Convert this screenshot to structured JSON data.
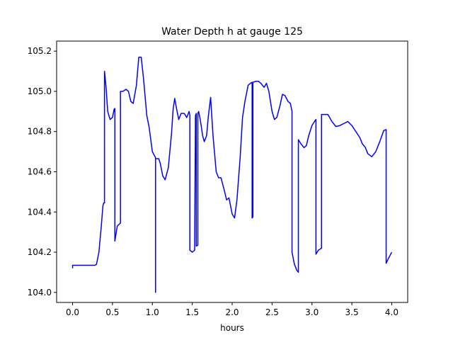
{
  "chart_data": {
    "type": "line",
    "title": "Water Depth h at gauge 125",
    "xlabel": "hours",
    "ylabel": "",
    "xlim": [
      -0.2,
      4.2
    ],
    "ylim": [
      103.95,
      105.25
    ],
    "xticks": [
      0.0,
      0.5,
      1.0,
      1.5,
      2.0,
      2.5,
      3.0,
      3.5,
      4.0
    ],
    "xtick_labels": [
      "0.0",
      "0.5",
      "1.0",
      "1.5",
      "2.0",
      "2.5",
      "3.0",
      "3.5",
      "4.0"
    ],
    "yticks": [
      104.0,
      104.2,
      104.4,
      104.6,
      104.8,
      105.0,
      105.2
    ],
    "ytick_labels": [
      "104.0",
      "104.2",
      "104.4",
      "104.6",
      "104.8",
      "105.0",
      "105.2"
    ],
    "grid": false,
    "legend": "none",
    "series": [
      {
        "color": "#0000ff",
        "x": [
          0.0,
          0.0,
          0.1,
          0.2,
          0.28,
          0.3,
          0.33,
          0.36,
          0.38,
          0.39,
          0.4,
          0.4,
          0.42,
          0.44,
          0.47,
          0.5,
          0.52,
          0.53,
          0.53,
          0.56,
          0.6,
          0.6,
          0.63,
          0.67,
          0.7,
          0.73,
          0.76,
          0.8,
          0.83,
          0.86,
          0.89,
          0.93,
          0.96,
          1.0,
          1.04,
          1.04,
          1.04,
          1.08,
          1.1,
          1.13,
          1.16,
          1.2,
          1.24,
          1.26,
          1.28,
          1.3,
          1.33,
          1.36,
          1.4,
          1.43,
          1.46,
          1.47,
          1.47,
          1.5,
          1.53,
          1.53,
          1.54,
          1.55,
          1.55,
          1.57,
          1.57,
          1.58,
          1.6,
          1.63,
          1.65,
          1.68,
          1.7,
          1.73,
          1.76,
          1.8,
          1.83,
          1.86,
          1.9,
          1.93,
          1.96,
          2.0,
          2.03,
          2.06,
          2.1,
          2.13,
          2.16,
          2.2,
          2.23,
          2.25,
          2.25,
          2.26,
          2.26,
          2.3,
          2.33,
          2.36,
          2.4,
          2.43,
          2.46,
          2.5,
          2.53,
          2.56,
          2.6,
          2.63,
          2.66,
          2.7,
          2.73,
          2.75,
          2.75,
          2.78,
          2.81,
          2.83,
          2.83,
          2.86,
          2.9,
          2.93,
          2.96,
          3.0,
          3.04,
          3.05,
          3.05,
          3.08,
          3.12,
          3.12,
          3.15,
          3.2,
          3.25,
          3.3,
          3.35,
          3.4,
          3.45,
          3.5,
          3.55,
          3.6,
          3.63,
          3.67,
          3.7,
          3.75,
          3.8,
          3.85,
          3.9,
          3.93,
          3.93,
          3.96,
          4.0
        ],
        "y": [
          104.12,
          104.135,
          104.135,
          104.135,
          104.135,
          104.14,
          104.2,
          104.33,
          104.43,
          104.445,
          104.445,
          105.1,
          105.02,
          104.9,
          104.86,
          104.87,
          104.91,
          104.915,
          104.255,
          104.33,
          104.345,
          105.0,
          105.0,
          105.01,
          105.0,
          104.95,
          104.94,
          105.03,
          105.17,
          105.17,
          105.06,
          104.88,
          104.82,
          104.7,
          104.67,
          104.0,
          104.665,
          104.665,
          104.64,
          104.58,
          104.56,
          104.62,
          104.79,
          104.91,
          104.965,
          104.92,
          104.86,
          104.89,
          104.89,
          104.87,
          104.9,
          104.88,
          104.21,
          104.2,
          104.21,
          104.22,
          104.88,
          104.89,
          104.23,
          104.235,
          104.89,
          104.9,
          104.86,
          104.78,
          104.75,
          104.78,
          104.87,
          104.97,
          104.78,
          104.6,
          104.57,
          104.57,
          104.51,
          104.46,
          104.47,
          104.39,
          104.37,
          104.46,
          104.67,
          104.87,
          104.95,
          105.03,
          105.04,
          105.045,
          104.37,
          104.375,
          105.045,
          105.05,
          105.05,
          105.04,
          105.02,
          105.04,
          105.0,
          104.9,
          104.86,
          104.87,
          104.93,
          104.985,
          104.98,
          104.95,
          104.94,
          104.9,
          104.2,
          104.14,
          104.11,
          104.1,
          104.76,
          104.74,
          104.72,
          104.73,
          104.78,
          104.83,
          104.855,
          104.86,
          104.19,
          104.21,
          104.22,
          104.885,
          104.885,
          104.885,
          104.85,
          104.825,
          104.83,
          104.84,
          104.85,
          104.83,
          104.8,
          104.77,
          104.74,
          104.72,
          104.69,
          104.675,
          104.7,
          104.75,
          104.805,
          104.81,
          104.145,
          104.17,
          104.2
        ]
      }
    ]
  }
}
